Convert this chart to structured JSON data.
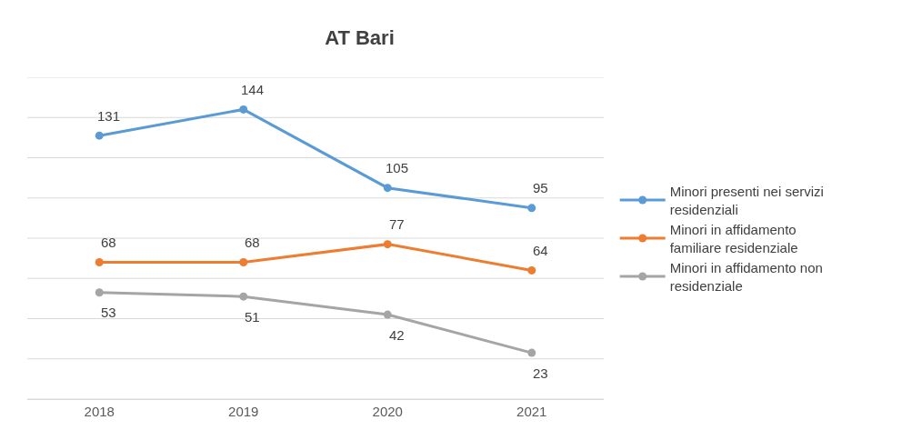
{
  "chart_data": {
    "type": "line",
    "title": "AT Bari",
    "categories": [
      "2018",
      "2019",
      "2020",
      "2021"
    ],
    "series": [
      {
        "name": "Minori presenti nei servizi residenziali",
        "color": "#5b9bd5",
        "values": [
          131,
          144,
          105,
          95
        ]
      },
      {
        "name": "Minori in affidamento familiare residenziale",
        "color": "#ed7d31",
        "values": [
          68,
          68,
          77,
          64
        ]
      },
      {
        "name": "Minori in affidamento non residenziale",
        "color": "#a5a5a5",
        "values": [
          53,
          51,
          42,
          23
        ]
      }
    ],
    "ylim": [
      0,
      160
    ],
    "yticks": [
      {
        "value": 0,
        "label": null
      },
      {
        "value": 20,
        "label": null
      },
      {
        "value": 40,
        "label": null
      },
      {
        "value": 60,
        "label": null
      },
      {
        "value": 80,
        "label": null
      },
      {
        "value": 100,
        "label": null
      },
      {
        "value": 120,
        "label": null
      },
      {
        "value": 140,
        "label": null
      },
      {
        "value": 160,
        "label": null
      }
    ],
    "tick_labels": "x",
    "grid": "y",
    "legend": "right",
    "marker": "circle",
    "line_style": "solid",
    "data_labels": true
  }
}
